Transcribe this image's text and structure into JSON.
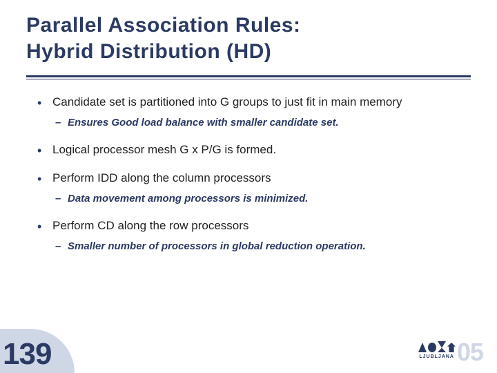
{
  "colors": {
    "accent": "#2b3a63",
    "wedge": "#cfd7e6",
    "text": "#222222",
    "background": "#ffffff"
  },
  "typography": {
    "title_fontsize_pt": 22,
    "body_fontsize_pt": 13,
    "sub_fontsize_pt": 11,
    "pagenum_fontsize_pt": 33,
    "family": "Century Gothic"
  },
  "title": {
    "line1": "Parallel Association Rules:",
    "line2": "Hybrid Distribution (HD)"
  },
  "bullets": [
    {
      "text": "Candidate set is partitioned into G groups to just fit in main memory",
      "sub": [
        "Ensures Good load balance with smaller candidate set."
      ]
    },
    {
      "text": "Logical processor mesh G x P/G is formed.",
      "sub": []
    },
    {
      "text": "Perform IDD along the column processors",
      "sub": [
        "Data movement among processors is minimized."
      ]
    },
    {
      "text": "Perform CD along the row processors",
      "sub": [
        "Smaller number of processors in global reduction operation."
      ]
    }
  ],
  "footer": {
    "page_number": "139",
    "logo_city": "LJUBLJANA",
    "logo_year": "05"
  }
}
